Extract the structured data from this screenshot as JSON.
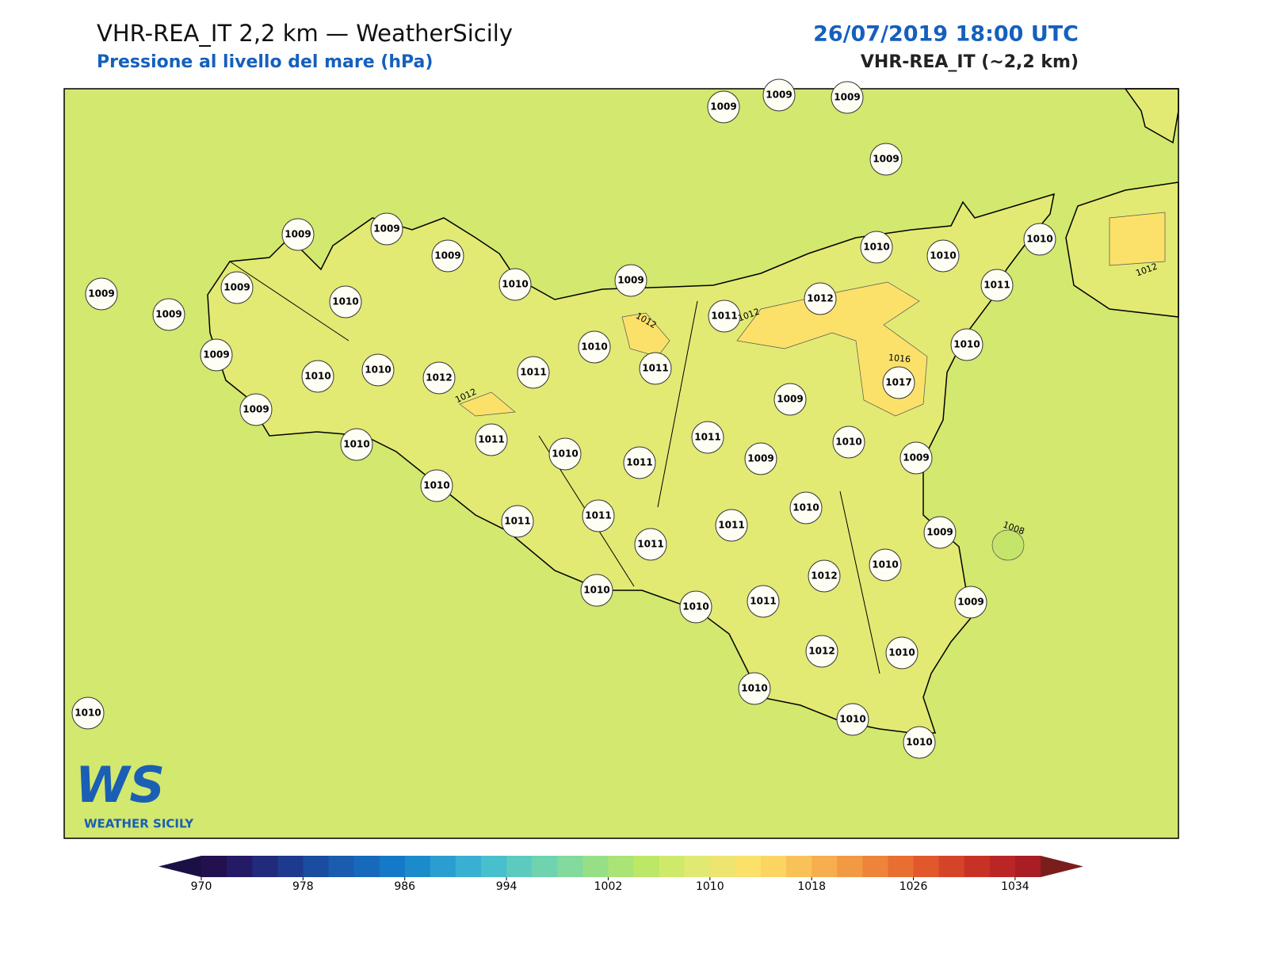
{
  "header": {
    "title": "VHR-REA_IT 2,2 km — WeatherSicily",
    "subtitle": "Pressione al livello del mare (hPa)",
    "date": "26/07/2019 18:00 UTC",
    "model": "VHR-REA_IT (~2,2 km)"
  },
  "map": {
    "sea_color": "#d2e86f",
    "land_color": "#e2ea74",
    "high_color": "#fbe16a",
    "stations": [
      1009,
      1009,
      1009,
      1009,
      1009,
      1009,
      1009,
      1009,
      1009,
      1009,
      1010,
      1010,
      1009,
      1010,
      1010,
      1010,
      1011,
      1012,
      1011,
      1010,
      1011,
      1010,
      1009,
      1010,
      1010,
      1012,
      1011,
      1017,
      1009,
      1009,
      1010,
      1011,
      1011,
      1010,
      1011,
      1009,
      1010,
      1009,
      1010,
      1010,
      1011,
      1011,
      1011,
      1011,
      1009,
      1010,
      1012,
      1010,
      1010,
      1011,
      1009,
      1012,
      1010,
      1010,
      1010,
      1010,
      1010
    ],
    "contour_labels": [
      1012,
      1012,
      1012,
      1012,
      1016,
      1008
    ]
  },
  "logo": {
    "mark": "WS",
    "name": "WEATHER SICILY"
  },
  "colorbar": {
    "lim": [
      970,
      1036
    ],
    "ticks": [
      970,
      978,
      986,
      994,
      1002,
      1010,
      1018,
      1026,
      1034
    ],
    "under": "#1b1046",
    "over": "#7b1d1d",
    "colors": [
      "#23114f",
      "#251a66",
      "#222a7c",
      "#1e3a8f",
      "#1a4c9f",
      "#1a5cae",
      "#1769bb",
      "#1479c6",
      "#1c8bcc",
      "#2a9ed0",
      "#37b0d2",
      "#48bfcc",
      "#5ccabf",
      "#6fd3b0",
      "#82da9c",
      "#97df87",
      "#aae474",
      "#bde767",
      "#cfe96a",
      "#e0ea72",
      "#eee570",
      "#fbe06a",
      "#fcd462",
      "#f9c259",
      "#f6ae4e",
      "#f29943",
      "#ee843a",
      "#e86e32",
      "#e0582c",
      "#d54428",
      "#c83226",
      "#b92625",
      "#a81e22"
    ]
  }
}
